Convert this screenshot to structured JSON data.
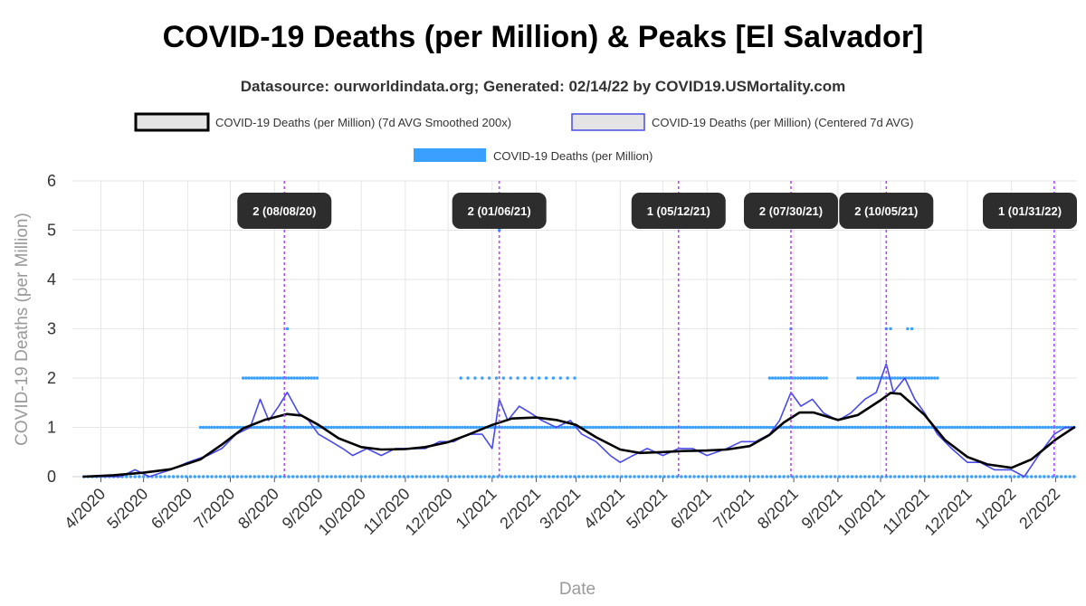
{
  "chart_data": {
    "type": "line",
    "title": "COVID-19 Deaths (per Million) & Peaks [El Salvador]",
    "subtitle": "Datasource: ourworldindata.org; Generated: 02/14/22 by COVID19.USMortality.com",
    "xlabel": "Date",
    "ylabel": "COVID-19 Deaths (per Million)",
    "ylim": [
      0,
      6
    ],
    "xlim": [
      "2020-03-12",
      "2022-02-16"
    ],
    "y_ticks": [
      "0",
      "1",
      "2",
      "3",
      "4",
      "5",
      "6"
    ],
    "x_ticks": [
      {
        "date": "2020-04-01",
        "label": "4/2020"
      },
      {
        "date": "2020-05-01",
        "label": "5/2020"
      },
      {
        "date": "2020-06-01",
        "label": "6/2020"
      },
      {
        "date": "2020-07-01",
        "label": "7/2020"
      },
      {
        "date": "2020-08-01",
        "label": "8/2020"
      },
      {
        "date": "2020-09-01",
        "label": "9/2020"
      },
      {
        "date": "2020-10-01",
        "label": "10/2020"
      },
      {
        "date": "2020-11-01",
        "label": "11/2020"
      },
      {
        "date": "2020-12-01",
        "label": "12/2020"
      },
      {
        "date": "2021-01-01",
        "label": "1/2021"
      },
      {
        "date": "2021-02-01",
        "label": "2/2021"
      },
      {
        "date": "2021-03-01",
        "label": "3/2021"
      },
      {
        "date": "2021-04-01",
        "label": "4/2021"
      },
      {
        "date": "2021-05-01",
        "label": "5/2021"
      },
      {
        "date": "2021-06-01",
        "label": "6/2021"
      },
      {
        "date": "2021-07-01",
        "label": "7/2021"
      },
      {
        "date": "2021-08-01",
        "label": "8/2021"
      },
      {
        "date": "2021-09-01",
        "label": "9/2021"
      },
      {
        "date": "2021-10-01",
        "label": "10/2021"
      },
      {
        "date": "2021-11-01",
        "label": "11/2021"
      },
      {
        "date": "2021-12-01",
        "label": "12/2021"
      },
      {
        "date": "2022-01-01",
        "label": "1/2022"
      },
      {
        "date": "2022-02-01",
        "label": "2/2022"
      }
    ],
    "grid": true,
    "legend_position": "top-center",
    "series": [
      {
        "name": "COVID-19 Deaths (per Million) (7d AVG Smoothed 200x)",
        "color": "#000000",
        "style": "line",
        "points": [
          [
            "2020-03-20",
            0.0
          ],
          [
            "2020-04-10",
            0.03
          ],
          [
            "2020-05-01",
            0.08
          ],
          [
            "2020-05-20",
            0.15
          ],
          [
            "2020-06-10",
            0.35
          ],
          [
            "2020-06-25",
            0.65
          ],
          [
            "2020-07-10",
            0.98
          ],
          [
            "2020-07-25",
            1.15
          ],
          [
            "2020-08-10",
            1.27
          ],
          [
            "2020-08-20",
            1.24
          ],
          [
            "2020-09-01",
            1.05
          ],
          [
            "2020-09-15",
            0.78
          ],
          [
            "2020-10-01",
            0.6
          ],
          [
            "2020-10-15",
            0.55
          ],
          [
            "2020-11-01",
            0.56
          ],
          [
            "2020-11-15",
            0.6
          ],
          [
            "2020-12-01",
            0.7
          ],
          [
            "2020-12-15",
            0.85
          ],
          [
            "2021-01-01",
            1.05
          ],
          [
            "2021-01-15",
            1.18
          ],
          [
            "2021-02-01",
            1.2
          ],
          [
            "2021-02-15",
            1.15
          ],
          [
            "2021-03-01",
            1.05
          ],
          [
            "2021-03-15",
            0.8
          ],
          [
            "2021-04-01",
            0.55
          ],
          [
            "2021-04-15",
            0.48
          ],
          [
            "2021-05-01",
            0.5
          ],
          [
            "2021-05-15",
            0.52
          ],
          [
            "2021-06-01",
            0.53
          ],
          [
            "2021-06-15",
            0.55
          ],
          [
            "2021-07-01",
            0.62
          ],
          [
            "2021-07-15",
            0.85
          ],
          [
            "2021-07-25",
            1.1
          ],
          [
            "2021-08-05",
            1.3
          ],
          [
            "2021-08-15",
            1.3
          ],
          [
            "2021-09-01",
            1.15
          ],
          [
            "2021-09-15",
            1.25
          ],
          [
            "2021-10-01",
            1.55
          ],
          [
            "2021-10-08",
            1.7
          ],
          [
            "2021-10-15",
            1.68
          ],
          [
            "2021-11-01",
            1.25
          ],
          [
            "2021-11-15",
            0.75
          ],
          [
            "2021-12-01",
            0.4
          ],
          [
            "2021-12-15",
            0.25
          ],
          [
            "2022-01-01",
            0.18
          ],
          [
            "2022-01-15",
            0.35
          ],
          [
            "2022-02-01",
            0.75
          ],
          [
            "2022-02-14",
            1.0
          ]
        ]
      },
      {
        "name": "COVID-19 Deaths (per Million) (Centered 7d AVG)",
        "color": "#4a4ae8",
        "style": "line",
        "points": [
          [
            "2020-03-25",
            0.0
          ],
          [
            "2020-04-15",
            0.0
          ],
          [
            "2020-04-25",
            0.14
          ],
          [
            "2020-05-05",
            0.0
          ],
          [
            "2020-05-20",
            0.14
          ],
          [
            "2020-06-01",
            0.29
          ],
          [
            "2020-06-15",
            0.43
          ],
          [
            "2020-06-25",
            0.57
          ],
          [
            "2020-07-05",
            0.86
          ],
          [
            "2020-07-15",
            1.0
          ],
          [
            "2020-07-22",
            1.57
          ],
          [
            "2020-07-28",
            1.14
          ],
          [
            "2020-08-04",
            1.43
          ],
          [
            "2020-08-10",
            1.71
          ],
          [
            "2020-08-18",
            1.29
          ],
          [
            "2020-08-25",
            1.14
          ],
          [
            "2020-09-01",
            0.86
          ],
          [
            "2020-09-10",
            0.71
          ],
          [
            "2020-09-18",
            0.57
          ],
          [
            "2020-09-25",
            0.43
          ],
          [
            "2020-10-05",
            0.57
          ],
          [
            "2020-10-15",
            0.43
          ],
          [
            "2020-10-25",
            0.57
          ],
          [
            "2020-11-05",
            0.57
          ],
          [
            "2020-11-15",
            0.57
          ],
          [
            "2020-11-25",
            0.71
          ],
          [
            "2020-12-05",
            0.71
          ],
          [
            "2020-12-15",
            0.86
          ],
          [
            "2020-12-25",
            0.86
          ],
          [
            "2021-01-01",
            0.57
          ],
          [
            "2021-01-06",
            1.57
          ],
          [
            "2021-01-12",
            1.14
          ],
          [
            "2021-01-20",
            1.43
          ],
          [
            "2021-01-28",
            1.29
          ],
          [
            "2021-02-05",
            1.14
          ],
          [
            "2021-02-15",
            1.0
          ],
          [
            "2021-02-25",
            1.14
          ],
          [
            "2021-03-05",
            0.86
          ],
          [
            "2021-03-15",
            0.71
          ],
          [
            "2021-03-25",
            0.43
          ],
          [
            "2021-04-01",
            0.29
          ],
          [
            "2021-04-10",
            0.43
          ],
          [
            "2021-04-20",
            0.57
          ],
          [
            "2021-05-01",
            0.43
          ],
          [
            "2021-05-12",
            0.57
          ],
          [
            "2021-05-22",
            0.57
          ],
          [
            "2021-06-01",
            0.43
          ],
          [
            "2021-06-15",
            0.57
          ],
          [
            "2021-06-25",
            0.71
          ],
          [
            "2021-07-05",
            0.71
          ],
          [
            "2021-07-15",
            0.86
          ],
          [
            "2021-07-22",
            1.14
          ],
          [
            "2021-07-30",
            1.71
          ],
          [
            "2021-08-06",
            1.43
          ],
          [
            "2021-08-14",
            1.57
          ],
          [
            "2021-08-22",
            1.29
          ],
          [
            "2021-09-01",
            1.14
          ],
          [
            "2021-09-10",
            1.29
          ],
          [
            "2021-09-20",
            1.57
          ],
          [
            "2021-09-28",
            1.71
          ],
          [
            "2021-10-05",
            2.29
          ],
          [
            "2021-10-10",
            1.71
          ],
          [
            "2021-10-18",
            2.0
          ],
          [
            "2021-10-25",
            1.57
          ],
          [
            "2021-11-01",
            1.29
          ],
          [
            "2021-11-10",
            0.86
          ],
          [
            "2021-11-20",
            0.57
          ],
          [
            "2021-12-01",
            0.29
          ],
          [
            "2021-12-10",
            0.29
          ],
          [
            "2021-12-20",
            0.14
          ],
          [
            "2022-01-01",
            0.14
          ],
          [
            "2022-01-10",
            0.0
          ],
          [
            "2022-01-20",
            0.43
          ],
          [
            "2022-01-31",
            0.86
          ],
          [
            "2022-02-08",
            1.0
          ],
          [
            "2022-02-14",
            1.0
          ]
        ]
      },
      {
        "name": "COVID-19 Deaths (per Million)",
        "color": "#3aa0ff",
        "style": "dots",
        "segments": [
          {
            "start": "2020-03-20",
            "end": "2022-02-14",
            "y": 0,
            "step": 3
          },
          {
            "start": "2020-06-10",
            "end": "2022-02-14",
            "y": 1,
            "step": 2
          },
          {
            "start": "2020-07-10",
            "end": "2020-09-01",
            "y": 2,
            "step": 2
          },
          {
            "start": "2020-12-10",
            "end": "2021-03-01",
            "y": 2,
            "step": 5
          },
          {
            "start": "2021-07-15",
            "end": "2021-08-25",
            "y": 2,
            "step": 2
          },
          {
            "start": "2021-09-15",
            "end": "2021-11-10",
            "y": 2,
            "step": 2
          }
        ],
        "extra_points": [
          [
            "2020-08-10",
            3
          ],
          [
            "2021-01-06",
            5
          ],
          [
            "2021-07-30",
            3
          ],
          [
            "2021-10-05",
            3
          ],
          [
            "2021-10-08",
            3
          ],
          [
            "2021-10-20",
            3
          ],
          [
            "2021-10-23",
            3
          ]
        ]
      }
    ],
    "peaks": [
      {
        "date": "2020-08-08",
        "label": "2 (08/08/20)"
      },
      {
        "date": "2021-01-06",
        "label": "2 (01/06/21)"
      },
      {
        "date": "2021-05-12",
        "label": "1 (05/12/21)"
      },
      {
        "date": "2021-07-30",
        "label": "2 (07/30/21)"
      },
      {
        "date": "2021-10-05",
        "label": "2 (10/05/21)"
      },
      {
        "date": "2022-01-31",
        "label": "1 (01/31/22)"
      }
    ]
  }
}
